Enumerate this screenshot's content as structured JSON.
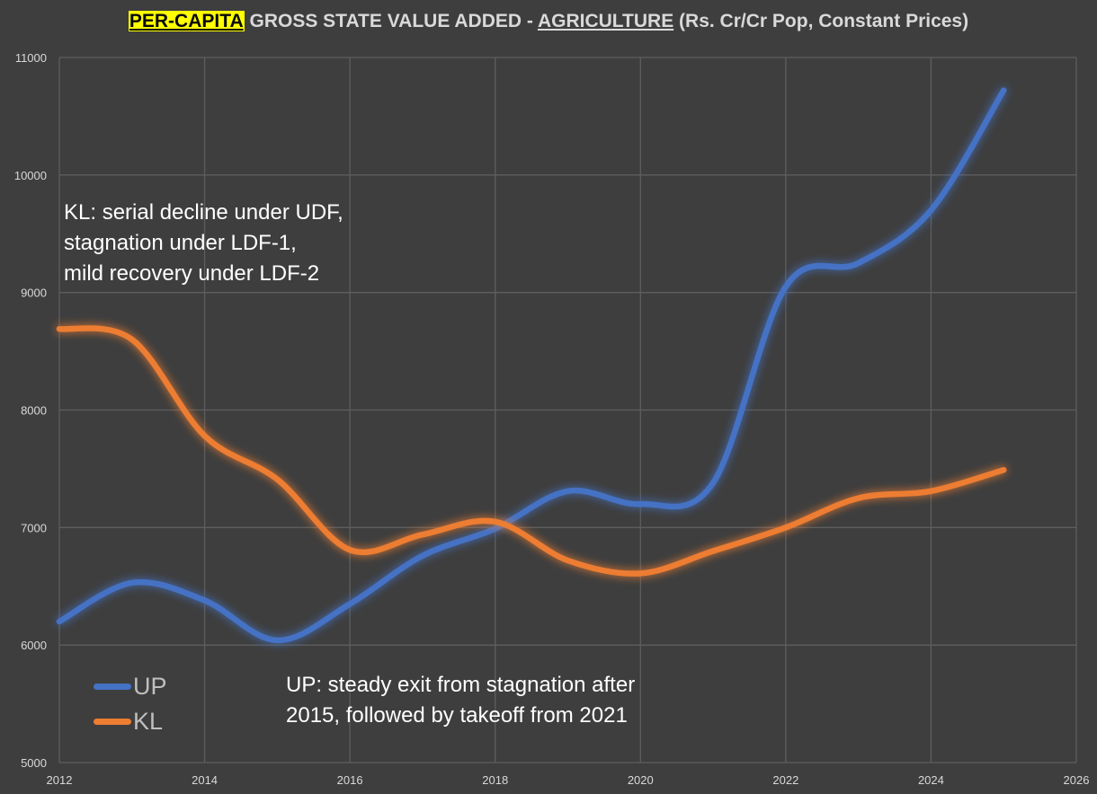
{
  "title": {
    "highlight": "PER-CAPITA",
    "middle": " GROSS STATE VALUE ADDED - ",
    "underlined": "AGRICULTURE",
    "suffix": " (Rs. Cr/Cr Pop, Constant Prices)"
  },
  "annotations": {
    "kl": [
      "KL: serial decline under UDF,",
      "stagnation under LDF-1,",
      "mild recovery under LDF-2"
    ],
    "up": [
      "UP: steady exit from stagnation after",
      "2015, followed by takeoff from 2021"
    ]
  },
  "chart_data": {
    "type": "line",
    "xlim": [
      2012,
      2026
    ],
    "ylim": [
      5000,
      11000
    ],
    "x_ticks": [
      2012,
      2014,
      2016,
      2018,
      2020,
      2022,
      2024,
      2026
    ],
    "y_ticks": [
      5000,
      6000,
      7000,
      8000,
      9000,
      10000,
      11000
    ],
    "grid": true,
    "legend_position": "bottom-left",
    "series": [
      {
        "name": "UP",
        "color": "#4472c4",
        "x": [
          2012,
          2013,
          2014,
          2015,
          2016,
          2017,
          2018,
          2019,
          2020,
          2021,
          2022,
          2023,
          2024,
          2025
        ],
        "values": [
          6200,
          6530,
          6380,
          6040,
          6350,
          6760,
          6990,
          7310,
          7200,
          7380,
          9050,
          9250,
          9700,
          10720
        ]
      },
      {
        "name": "KL",
        "color": "#ed7d31",
        "x": [
          2012,
          2013,
          2014,
          2015,
          2016,
          2017,
          2018,
          2019,
          2020,
          2021,
          2022,
          2023,
          2024,
          2025
        ],
        "values": [
          8690,
          8600,
          7780,
          7410,
          6810,
          6940,
          7050,
          6720,
          6610,
          6800,
          7000,
          7250,
          7310,
          7490
        ]
      }
    ]
  }
}
